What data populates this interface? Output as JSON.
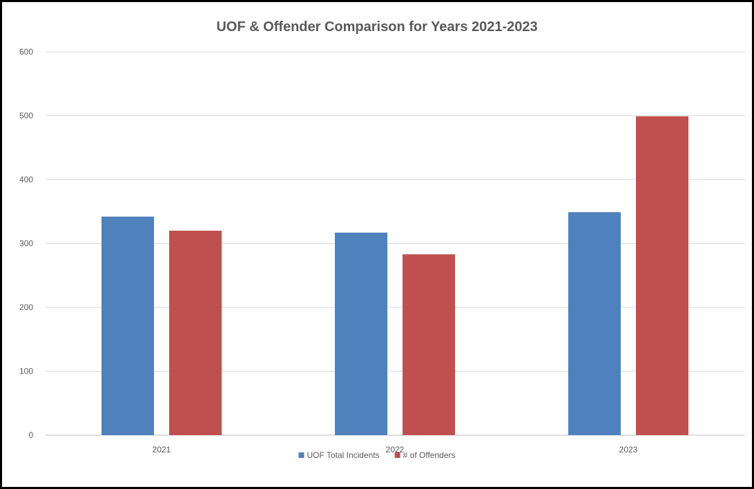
{
  "chart_data": {
    "type": "bar",
    "title": "UOF & Offender Comparison for Years 2021-2023",
    "xlabel": "",
    "ylabel": "",
    "categories": [
      "2021",
      "2022",
      "2023"
    ],
    "series": [
      {
        "name": "UOF Total Incidents",
        "color": "#4f81bd",
        "values": [
          342,
          317,
          349
        ]
      },
      {
        "name": "# of Offenders",
        "color": "#c0504d",
        "values": [
          320,
          283,
          499
        ]
      }
    ],
    "ylim": [
      0,
      600
    ],
    "yticks": [
      "0",
      "100",
      "200",
      "300",
      "400",
      "500",
      "600"
    ],
    "grid": true,
    "legend": "bottom-center"
  }
}
